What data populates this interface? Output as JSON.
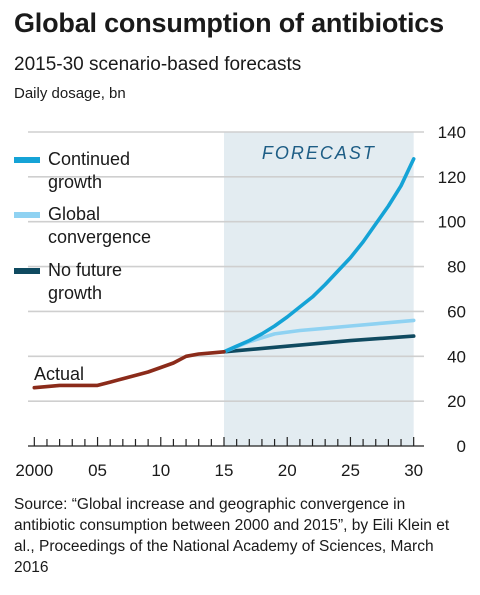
{
  "title": "Global consumption of antibiotics",
  "subtitle": "2015-30 scenario-based forecasts",
  "unit": "Daily dosage, bn",
  "source": "Source: “Global increase and geographic convergence in antibiotic consumption between 2000 and 2015”, by Eili Klein et al., Proceedings of the National Academy of Sciences, March 2016",
  "colors": {
    "actual": "#8b2b1a",
    "continued": "#15a3d6",
    "convergence": "#8fd2f2",
    "no_future": "#0f4a60",
    "forecast_band": "#e3ecf1",
    "grid": "#cfcfcf"
  },
  "chart_data": {
    "type": "line",
    "forecast_label": "FORECAST",
    "forecast_range": [
      2015,
      2030
    ],
    "xlim": [
      1999.5,
      2030.5
    ],
    "ylim": [
      0,
      140
    ],
    "yticks": [
      0,
      20,
      40,
      60,
      80,
      100,
      120,
      140
    ],
    "xticks": [
      {
        "value": 2000,
        "label": "2000"
      },
      {
        "value": 2005,
        "label": "05"
      },
      {
        "value": 2010,
        "label": "10"
      },
      {
        "value": 2015,
        "label": "15"
      },
      {
        "value": 2020,
        "label": "20"
      },
      {
        "value": 2025,
        "label": "25"
      },
      {
        "value": 2030,
        "label": "30"
      }
    ],
    "series": [
      {
        "key": "actual",
        "name": "Actual",
        "x": [
          2000,
          2001,
          2002,
          2003,
          2004,
          2005,
          2006,
          2007,
          2008,
          2009,
          2010,
          2011,
          2012,
          2013,
          2014,
          2015
        ],
        "y": [
          26,
          26.5,
          27,
          27,
          27,
          27,
          28.5,
          30,
          31.5,
          33,
          35,
          37,
          40,
          41,
          41.5,
          42
        ]
      },
      {
        "key": "continued",
        "name": "Continued growth",
        "x": [
          2015,
          2016,
          2017,
          2018,
          2019,
          2020,
          2021,
          2022,
          2023,
          2024,
          2025,
          2026,
          2027,
          2028,
          2029,
          2030
        ],
        "y": [
          42,
          44.5,
          47,
          50,
          53.5,
          57.5,
          62,
          66.5,
          72,
          78,
          84,
          91,
          99,
          107,
          116,
          128
        ]
      },
      {
        "key": "convergence",
        "name": "Global convergence",
        "x": [
          2015,
          2017,
          2019,
          2021,
          2023,
          2025,
          2027,
          2030
        ],
        "y": [
          42,
          46.5,
          50,
          51.5,
          52.5,
          53.5,
          54.5,
          56
        ]
      },
      {
        "key": "no_future",
        "name": "No future growth",
        "x": [
          2015,
          2020,
          2025,
          2030
        ],
        "y": [
          42,
          44.5,
          47,
          49
        ]
      }
    ]
  }
}
